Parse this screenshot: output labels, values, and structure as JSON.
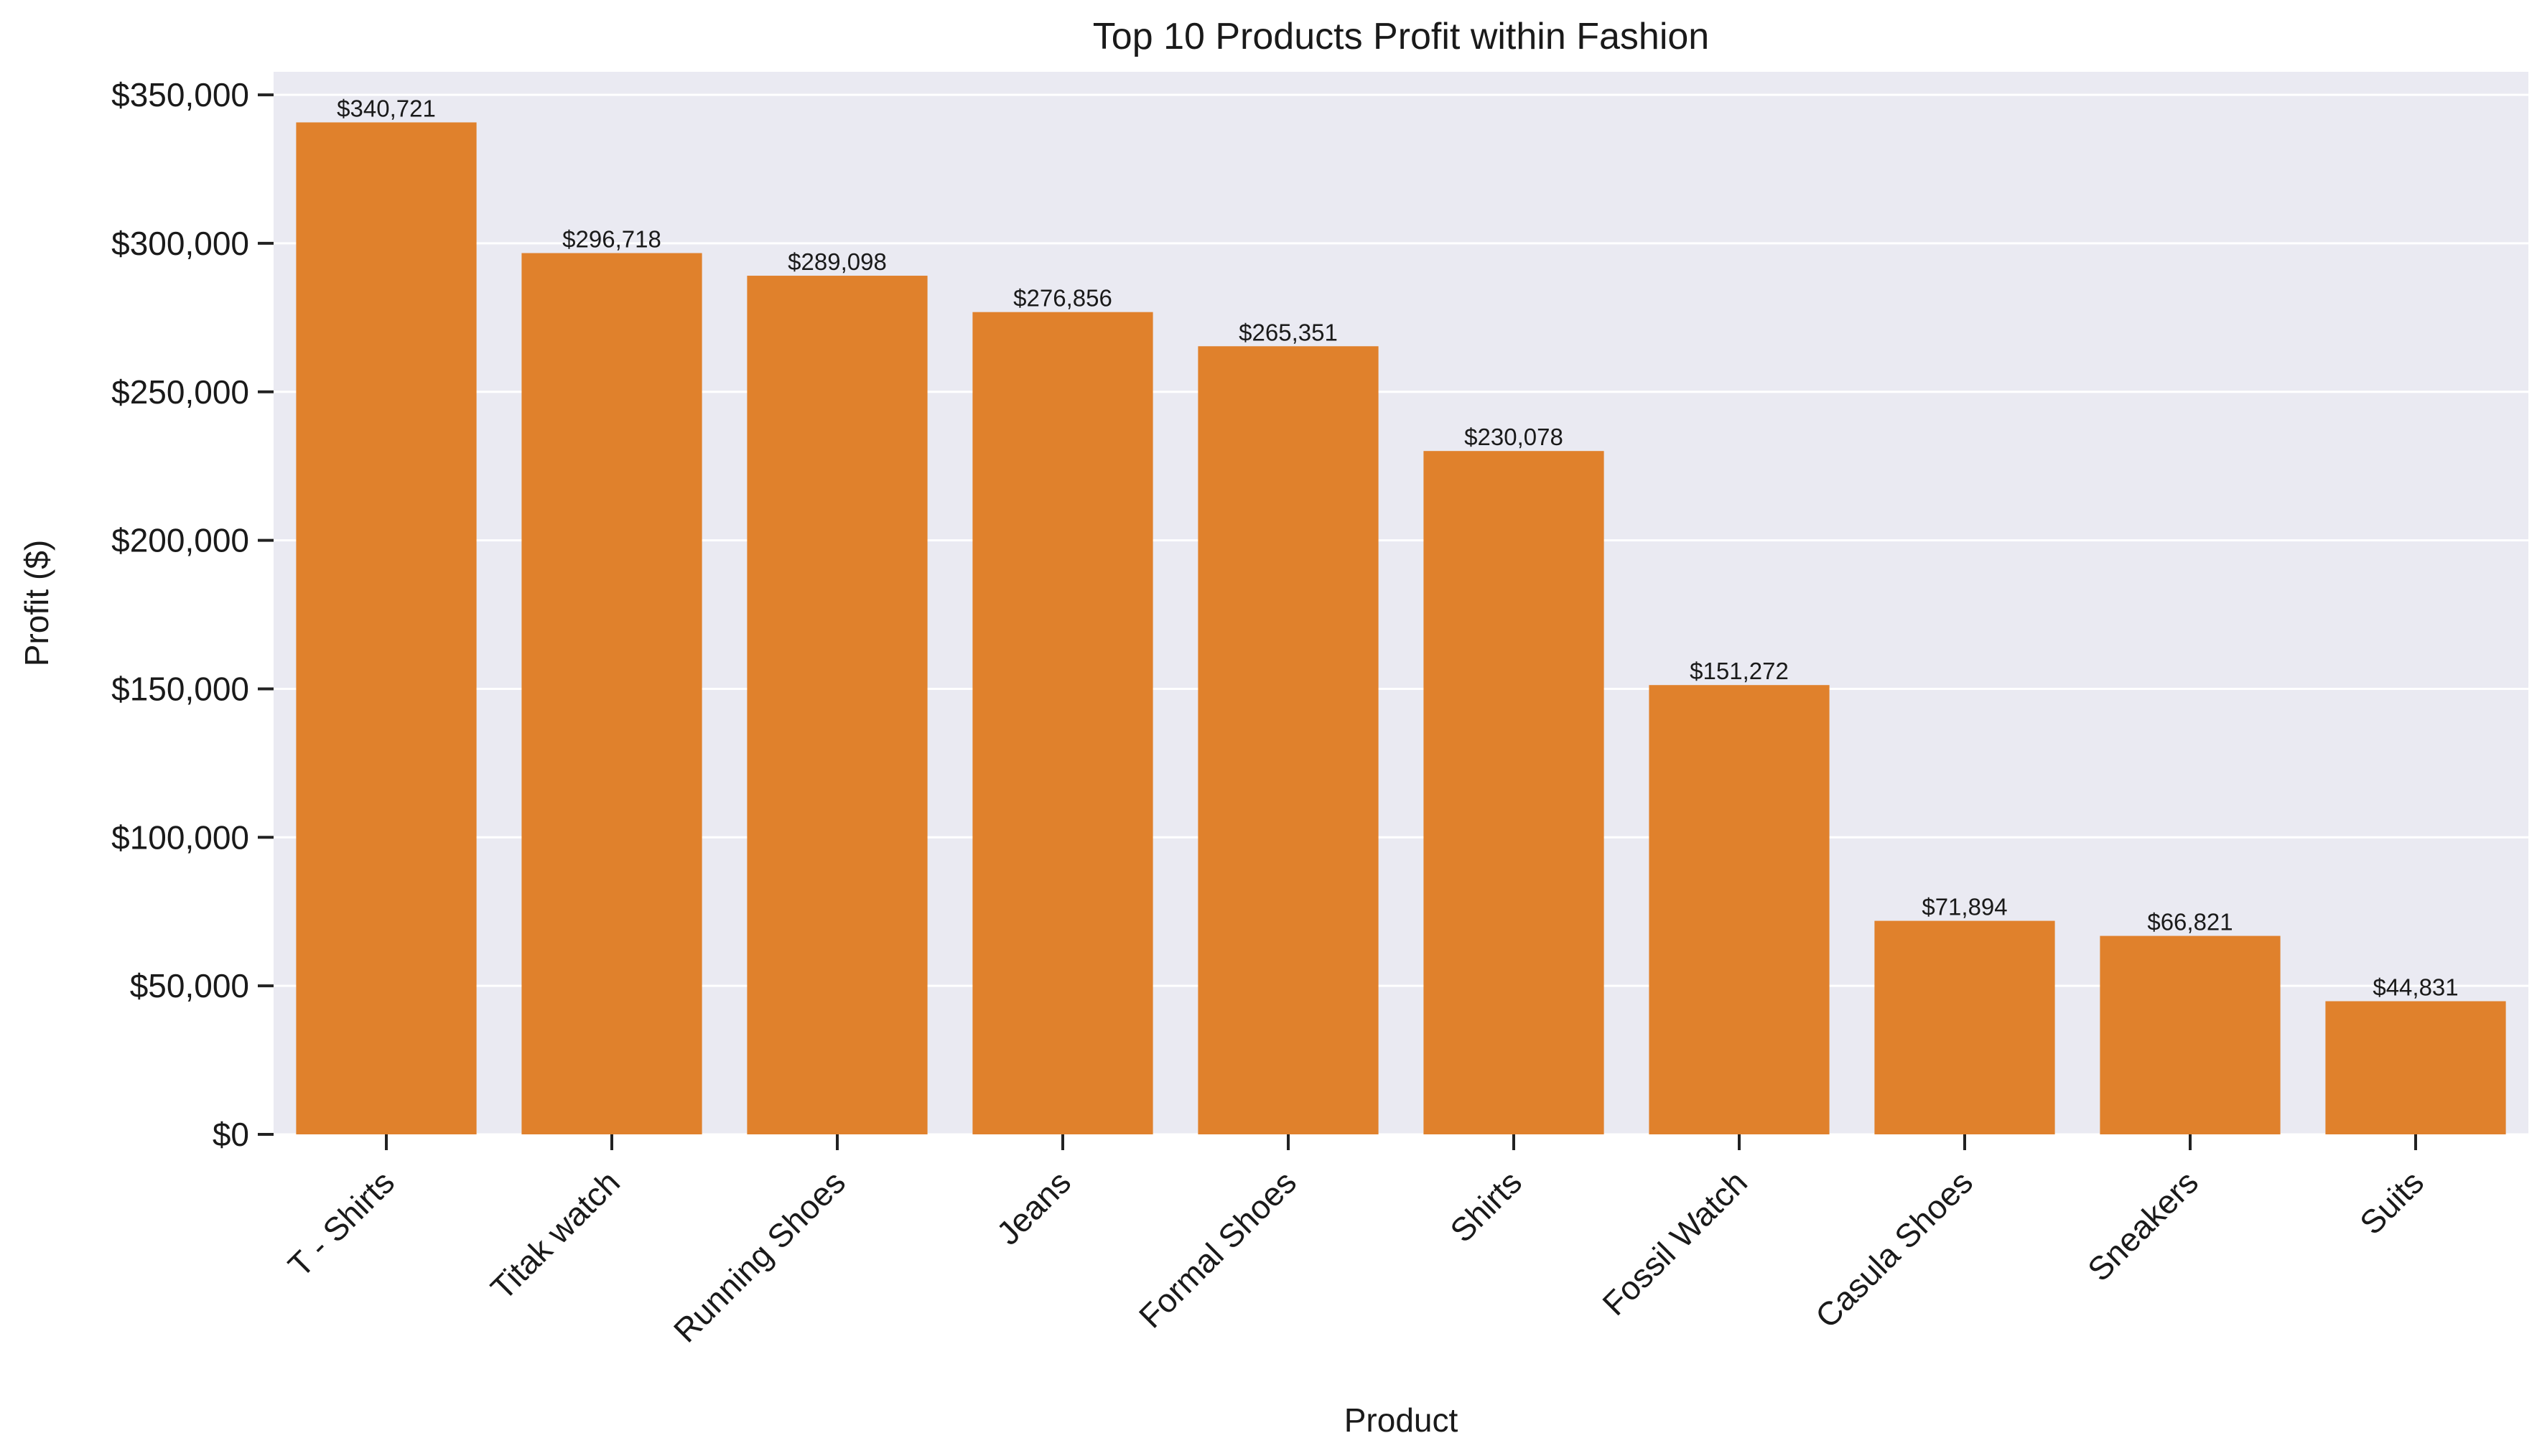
{
  "chart_data": {
    "type": "bar",
    "title": "Top 10 Products Profit within Fashion",
    "xlabel": "Product",
    "ylabel": "Profit ($)",
    "categories": [
      "T - Shirts",
      "Titak watch",
      "Running Shoes",
      "Jeans",
      "Formal Shoes",
      "Shirts",
      "Fossil Watch",
      "Casula Shoes",
      "Sneakers",
      "Suits"
    ],
    "values": [
      340721,
      296718,
      289098,
      276856,
      265351,
      230078,
      151272,
      71894,
      66821,
      44831
    ],
    "value_labels": [
      "$340,721",
      "$296,718",
      "$289,098",
      "$276,856",
      "$265,351",
      "$230,078",
      "$151,272",
      "$71,894",
      "$66,821",
      "$44,831"
    ],
    "yticks": [
      0,
      50000,
      100000,
      150000,
      200000,
      250000,
      300000,
      350000
    ],
    "ytick_labels": [
      "$0",
      "$50,000",
      "$100,000",
      "$150,000",
      "$200,000",
      "$250,000",
      "$300,000",
      "$350,000"
    ],
    "ylim": [
      0,
      357757
    ],
    "grid": true,
    "bar_color": "#e0812c",
    "background_color": "#eaeaf2"
  }
}
